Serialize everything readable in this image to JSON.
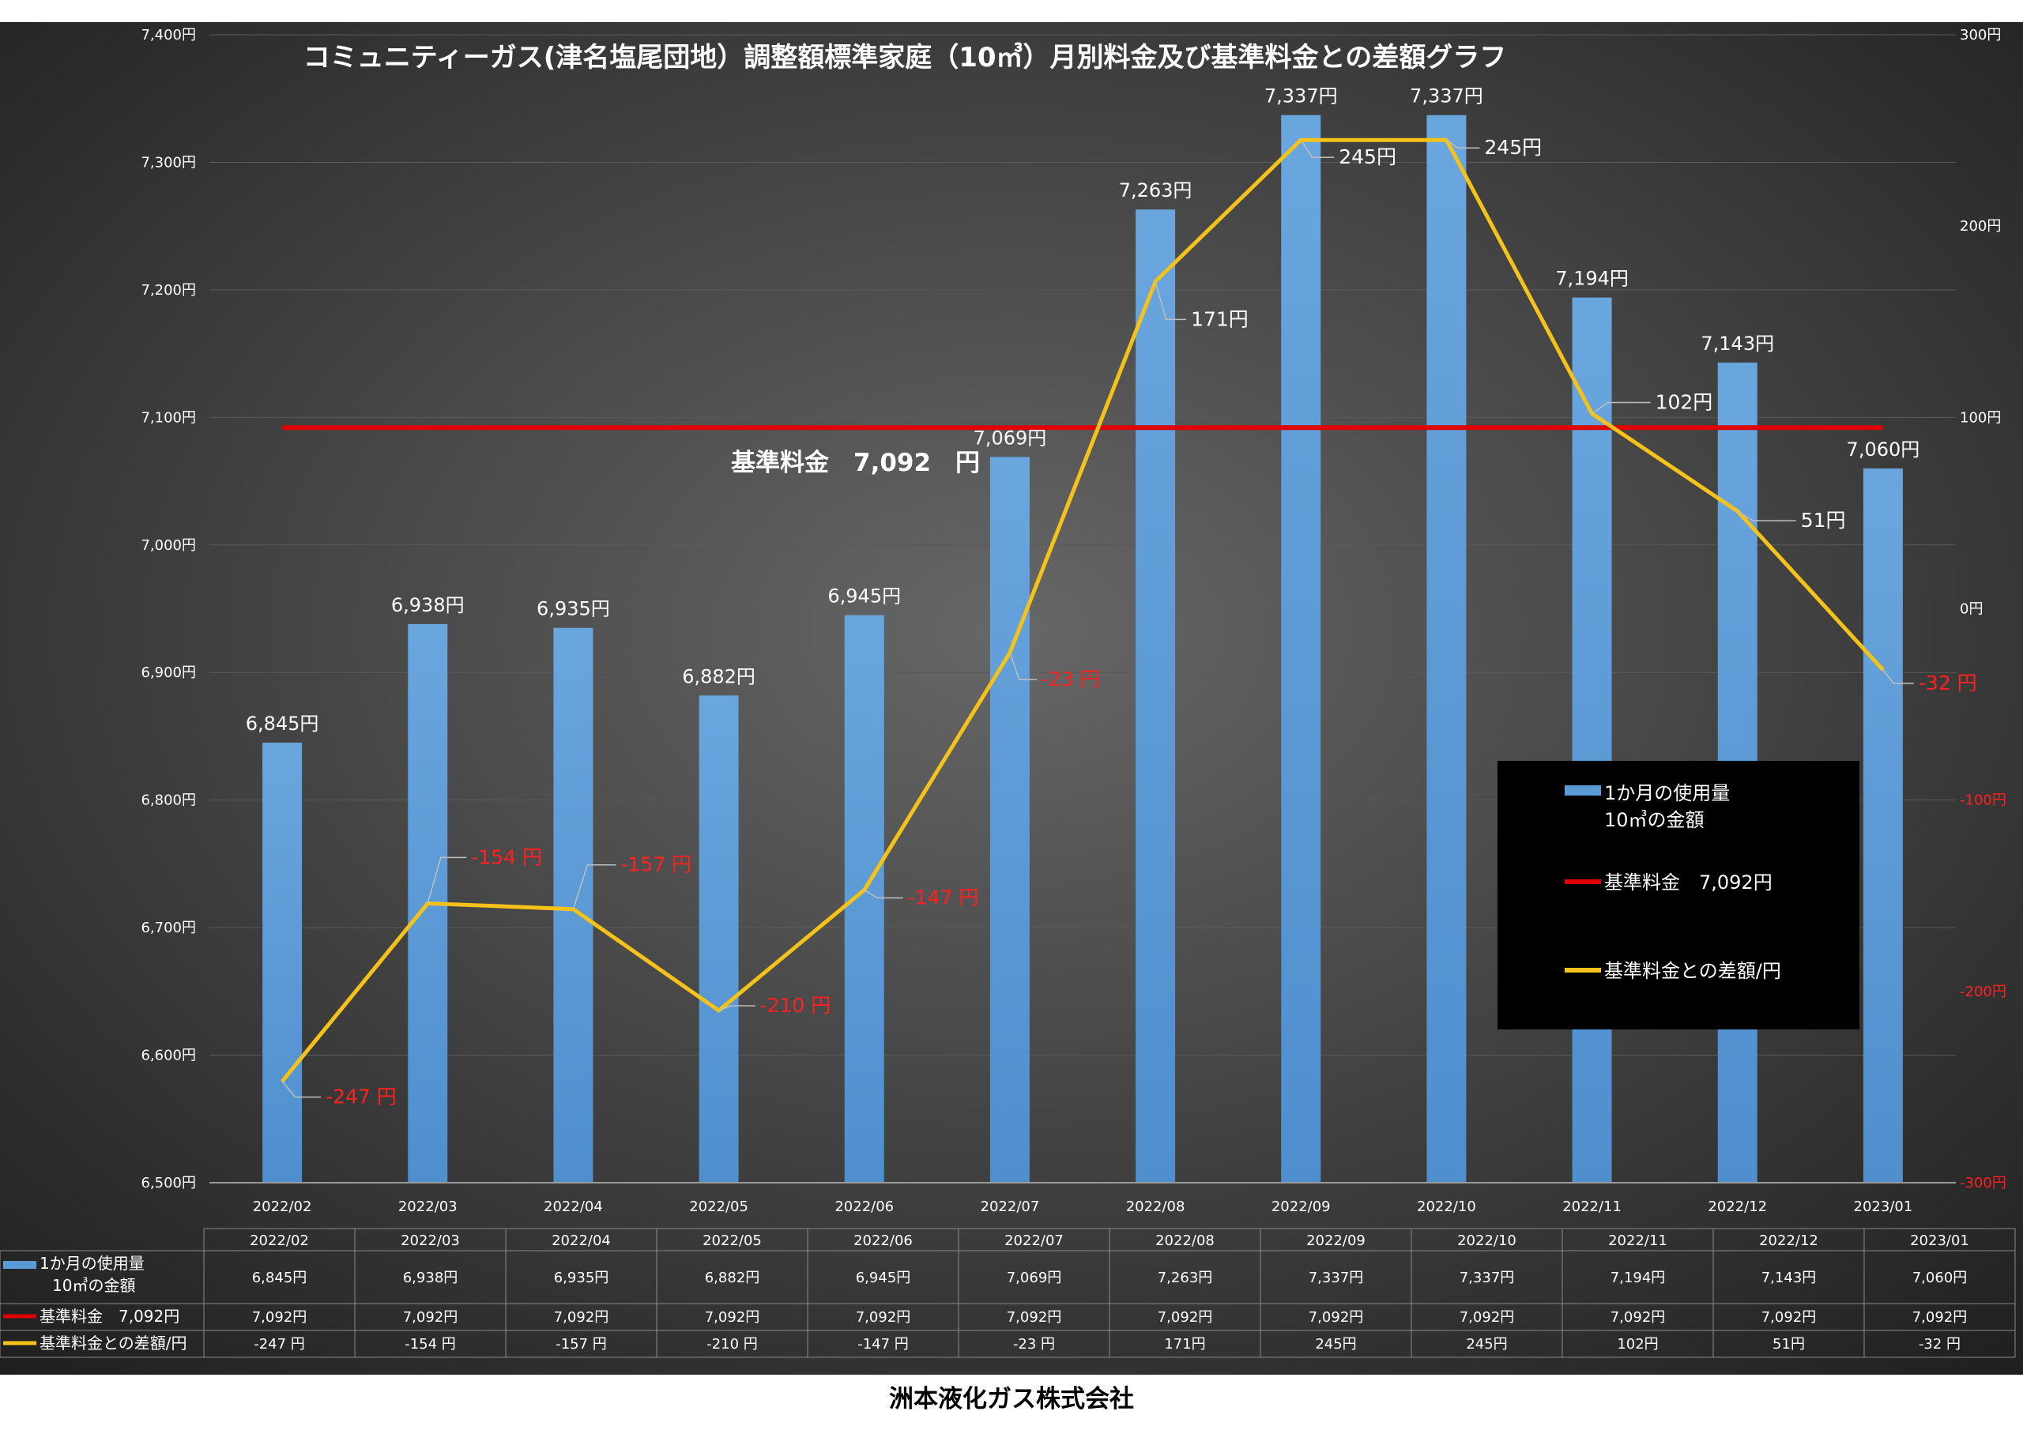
{
  "chart_data": {
    "type": "bar+line",
    "title": "コミュニティーガス(津名塩尾団地）調整額標準家庭（10㎥）月別料金及び基準料金との差額グラフ",
    "categories": [
      "2022/02",
      "2022/03",
      "2022/04",
      "2022/05",
      "2022/06",
      "2022/07",
      "2022/08",
      "2022/09",
      "2022/10",
      "2022/11",
      "2022/12",
      "2023/01"
    ],
    "series": [
      {
        "name": "1か月の使用量 10㎥の金額",
        "type": "bar",
        "axis": "left",
        "values": [
          6845,
          6938,
          6935,
          6882,
          6945,
          7069,
          7263,
          7337,
          7337,
          7194,
          7143,
          7060
        ],
        "labels": [
          "6,845円",
          "6,938円",
          "6,935円",
          "6,882円",
          "6,945円",
          "7,069円",
          "7,263円",
          "7,337円",
          "7,337円",
          "7,194円",
          "7,143円",
          "7,060円"
        ]
      },
      {
        "name": "基準料金　7,092円",
        "type": "line",
        "axis": "left",
        "values": [
          7092,
          7092,
          7092,
          7092,
          7092,
          7092,
          7092,
          7092,
          7092,
          7092,
          7092,
          7092
        ],
        "labels": [
          "7,092円",
          "7,092円",
          "7,092円",
          "7,092円",
          "7,092円",
          "7,092円",
          "7,092円",
          "7,092円",
          "7,092円",
          "7,092円",
          "7,092円",
          "7,092円"
        ]
      },
      {
        "name": "基準料金との差額/円",
        "type": "line",
        "axis": "right",
        "values": [
          -247,
          -154,
          -157,
          -210,
          -147,
          -23,
          171,
          245,
          245,
          102,
          51,
          -32
        ],
        "labels": [
          "-247 円",
          "-154 円",
          "-157 円",
          "-210 円",
          "-147 円",
          "-23 円",
          "171円",
          "245円",
          "245円",
          "102円",
          "51円",
          "-32 円"
        ]
      }
    ],
    "left_axis": {
      "min": 6500,
      "max": 7400,
      "step": 100,
      "tick_labels": [
        "6,500円",
        "6,600円",
        "6,700円",
        "6,800円",
        "6,900円",
        "7,000円",
        "7,100円",
        "7,200円",
        "7,300円",
        "7,400円"
      ]
    },
    "right_axis": {
      "min": -300,
      "max": 300,
      "step": 100,
      "tick_labels": [
        "-300円",
        "-200円",
        "-100円",
        "0円",
        "100円",
        "200円",
        "300円"
      ]
    },
    "baseline_annotation": "基準料金　7,092　円",
    "legend": {
      "position": "lower-right",
      "items": [
        {
          "label_line1": "1か月の使用量",
          "label_line2": "10㎥の金額"
        },
        {
          "label_line1": "基準料金　7,092円",
          "label_line2": ""
        },
        {
          "label_line1": "基準料金との差額/円",
          "label_line2": ""
        }
      ]
    },
    "grid": true
  },
  "colors": {
    "bar": "#5b9bd5",
    "baseline": "#e00000",
    "diff": "#f5c21a",
    "negative_label": "#ff2020",
    "positive_label": "#ffffff",
    "background_center": "#666666",
    "background_edge": "#1e1e1e"
  },
  "footer": "洲本液化ガス株式会社"
}
